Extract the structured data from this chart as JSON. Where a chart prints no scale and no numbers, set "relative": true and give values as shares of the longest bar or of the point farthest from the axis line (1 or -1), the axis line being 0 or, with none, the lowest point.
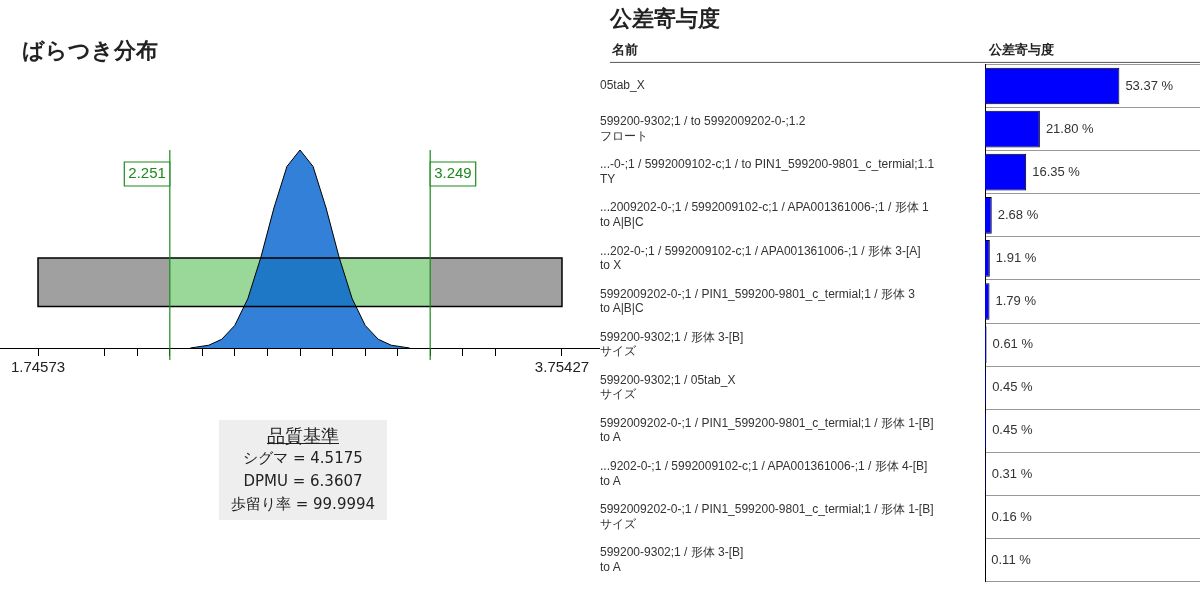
{
  "chart_data": [
    {
      "type": "area",
      "title": "ばらつき分布",
      "relative": true,
      "color": "#0060d0",
      "x": [
        2.33,
        2.35,
        2.4,
        2.45,
        2.5,
        2.55,
        2.6,
        2.65,
        2.7,
        2.75,
        2.8,
        2.85,
        2.9,
        2.95,
        3.0,
        3.05,
        3.1,
        3.15,
        3.17
      ],
      "values": [
        0,
        0.004,
        0.014,
        0.044,
        0.114,
        0.249,
        0.458,
        0.707,
        0.917,
        1,
        0.917,
        0.707,
        0.458,
        0.249,
        0.114,
        0.044,
        0.014,
        0.004,
        0
      ],
      "xlim": [
        1.6,
        3.9
      ],
      "xticks": [
        1.74573,
        {
          "value": 2.001,
          "label": null
        },
        {
          "value": 2.126,
          "label": null
        },
        {
          "value": 2.251,
          "label": null
        },
        {
          "value": 2.376,
          "label": null
        },
        {
          "value": 2.5,
          "label": null
        },
        {
          "value": 2.625,
          "label": null
        },
        {
          "value": 2.75,
          "label": null
        },
        {
          "value": 2.875,
          "label": null
        },
        {
          "value": 3.0,
          "label": null
        },
        {
          "value": 3.124,
          "label": null
        },
        {
          "value": 3.249,
          "label": null
        },
        {
          "value": 3.374,
          "label": null
        },
        {
          "value": 3.498,
          "label": null
        },
        3.75427
      ],
      "ref_lines": [
        {
          "axis": "x",
          "value": 2.251,
          "label": "2.251",
          "color": "#1a8a1a"
        },
        {
          "axis": "x",
          "value": 3.249,
          "label": "3.249",
          "color": "#1a8a1a"
        }
      ],
      "bands": [
        {
          "axis": "x",
          "from": 1.74573,
          "to": 3.75427,
          "color": "#a0a0a0"
        },
        {
          "axis": "x",
          "from": 2.251,
          "to": 3.249,
          "color": "#9ad89a"
        }
      ],
      "annotations": [
        "品質基準",
        "シグマ = 4.5175",
        "DPMU = 6.3607",
        "歩留り率 = 99.9994"
      ]
    },
    {
      "type": "bar",
      "orientation": "horizontal",
      "title": "公差寄与度",
      "xlabel": "公差寄与度",
      "ylabel": "名前",
      "color": "#0000ff",
      "grid": "y",
      "tick_labels": "y",
      "categories": [
        "05tab_X",
        "599200-9302;1 / to 5992009202-0-;1.2\nフロート",
        "...-0-;1 / 5992009102-c;1 / to PIN1_599200-9801_c_termial;1.1\nTY",
        "...2009202-0-;1 / 5992009102-c;1 / APA001361006-;1 / 形体 1\nto A|B|C",
        "...202-0-;1 / 5992009102-c;1 / APA001361006-;1 / 形体 3-[A]\nto X",
        "5992009202-0-;1 / PIN1_599200-9801_c_termial;1 / 形体 3\nto A|B|C",
        "599200-9302;1 / 形体 3-[B]\nサイズ",
        "599200-9302;1 / 05tab_X\nサイズ",
        "5992009202-0-;1 / PIN1_599200-9801_c_termial;1 / 形体 1-[B]\nto A",
        "...9202-0-;1 / 5992009102-c;1 / APA001361006-;1 / 形体 4-[B]\nto A",
        "5992009202-0-;1 / PIN1_599200-9801_c_termial;1 / 形体 1-[B]\nサイズ",
        "599200-9302;1 / 形体 3-[B]\nto A"
      ],
      "values": [
        53.37,
        21.8,
        16.35,
        2.68,
        1.91,
        1.79,
        0.61,
        0.45,
        0.45,
        0.31,
        0.16,
        0.11
      ],
      "value_labels": [
        "53.37 %",
        "21.80 %",
        "16.35 %",
        "2.68 %",
        "1.91 %",
        "1.79 %",
        "0.61 %",
        "0.45 %",
        "0.45 %",
        "0.31 %",
        "0.16 %",
        "0.11 %"
      ]
    }
  ]
}
